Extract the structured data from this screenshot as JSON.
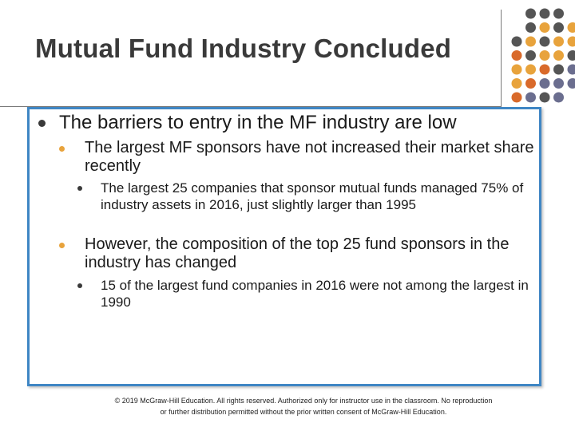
{
  "slide": {
    "title": "Mutual Fund Industry Concluded",
    "bullets": [
      {
        "level": 1,
        "text": "The barriers to entry in the MF industry are low"
      },
      {
        "level": 2,
        "text": "The largest MF sponsors have not increased their market share recently"
      },
      {
        "level": 3,
        "text": "The largest 25 companies that sponsor mutual funds managed 75% of industry assets in 2016, just slightly larger than 1995"
      },
      {
        "level": 2,
        "text": "However, the composition of the top 25 fund sponsors in the industry has changed"
      },
      {
        "level": 3,
        "text": "15 of the largest fund companies in 2016 were not among the largest in 1990"
      }
    ],
    "footer": "© 2019 McGraw-Hill Education. All rights reserved. Authorized only for instructor use in the classroom. No reproduction or further distribution permitted without the prior written consent of McGraw-Hill Education."
  },
  "colors": {
    "frame": "#3f86c4",
    "dot_dark": "#555555",
    "dot_gold": "#e8a33c",
    "dot_orange": "#d96a2b",
    "dot_slate": "#6b6e8f"
  }
}
